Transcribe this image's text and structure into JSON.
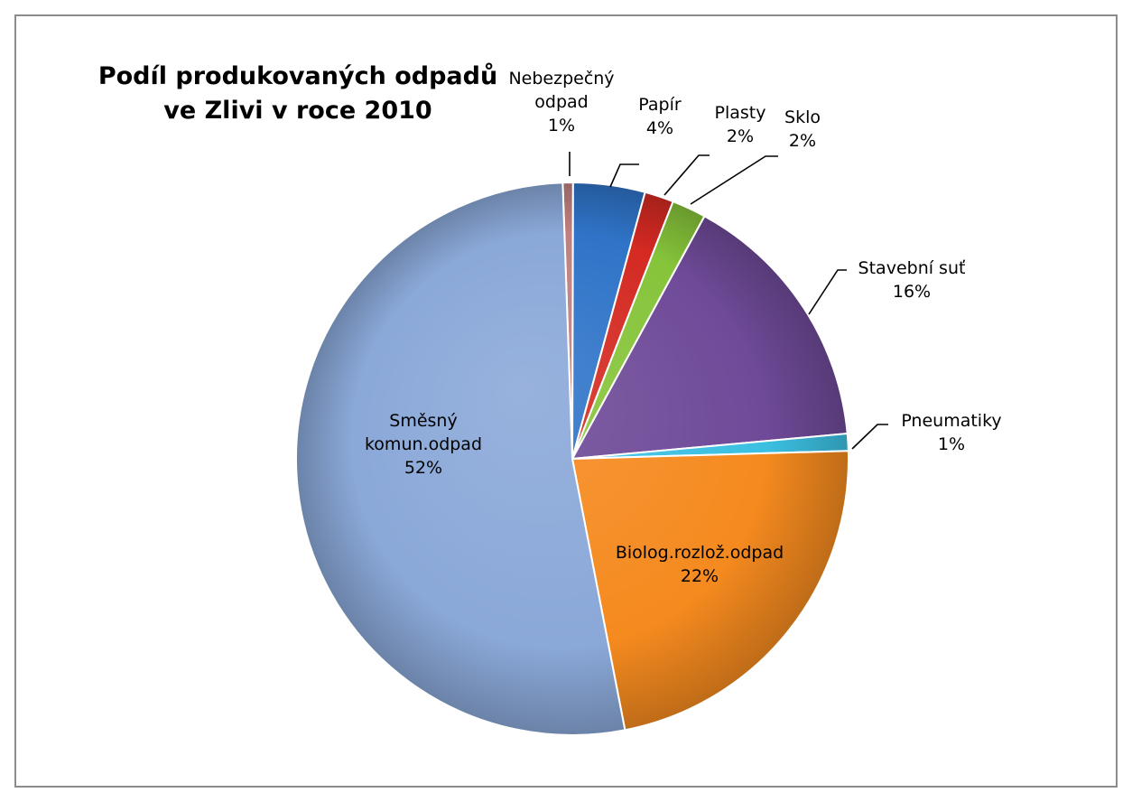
{
  "chart_data": {
    "type": "pie",
    "title": "Podíl produkovaných odpadů ve Zlivi v roce 2010",
    "title_lines": [
      "Podíl produkovaných odpadů",
      "ve Zlivi v roce 2010"
    ],
    "slices": [
      {
        "label_lines": [
          "Nebezpečný",
          "odpad"
        ],
        "label": "Nebezpečný odpad",
        "value": 0.6,
        "display": "1%",
        "color": "#c08080"
      },
      {
        "label_lines": [
          "Papír"
        ],
        "label": "Papír",
        "value": 4.2,
        "display": "4%",
        "color": "#2f74c8"
      },
      {
        "label_lines": [
          "Plasty"
        ],
        "label": "Plasty",
        "value": 1.7,
        "display": "2%",
        "color": "#d42a22"
      },
      {
        "label_lines": [
          "Sklo"
        ],
        "label": "Sklo",
        "value": 2.0,
        "display": "2%",
        "color": "#86c43a"
      },
      {
        "label_lines": [
          "Stavební suť"
        ],
        "label": "Stavební suť",
        "value": 15.6,
        "display": "16%",
        "color": "#6f4a98"
      },
      {
        "label_lines": [
          "Pneumatiky"
        ],
        "label": "Pneumatiky",
        "value": 1.0,
        "display": "1%",
        "color": "#3cc0e2"
      },
      {
        "label_lines": [
          "Biolog.rozlož.odpad"
        ],
        "label": "Biolog.rozlož.odpad",
        "value": 22.4,
        "display": "22%",
        "color": "#f58a1f"
      },
      {
        "label_lines": [
          "Směsný",
          "komun.odpad"
        ],
        "label": "Směsný komun.odpad",
        "value": 52.5,
        "display": "52%",
        "color": "#8aa8d8"
      }
    ],
    "start_angle_deg": -2,
    "direction": "clockwise",
    "legend": "none",
    "labels": "on slices / callouts"
  }
}
